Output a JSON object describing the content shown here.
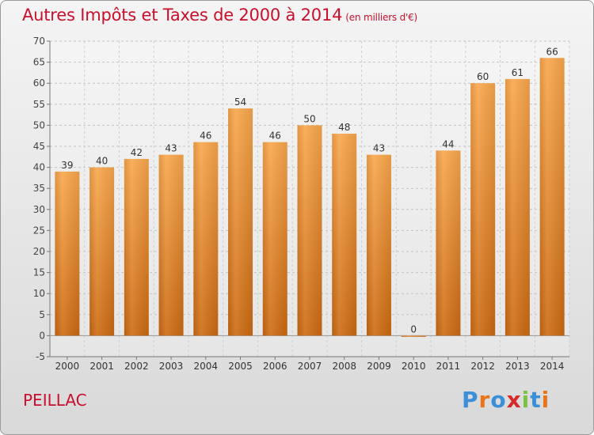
{
  "header": {
    "title": "Autres Impôts et Taxes de 2000 à 2014",
    "unit": "(en milliers d'€)"
  },
  "footer": {
    "commune": "PEILLAC",
    "brand": "Proxiti"
  },
  "colors": {
    "title": "#c8102e",
    "bar_light": "#f9a74c",
    "bar_dark": "#cc6a12"
  },
  "chart_data": {
    "type": "bar",
    "categories": [
      "2000",
      "2001",
      "2002",
      "2003",
      "2004",
      "2005",
      "2006",
      "2007",
      "2008",
      "2009",
      "2010",
      "2011",
      "2012",
      "2013",
      "2014"
    ],
    "values": [
      39,
      40,
      42,
      43,
      46,
      54,
      46,
      50,
      48,
      43,
      0,
      44,
      60,
      61,
      66
    ],
    "ylim": [
      -5,
      70
    ],
    "yticks": [
      -5,
      0,
      5,
      10,
      15,
      20,
      25,
      30,
      35,
      40,
      45,
      50,
      55,
      60,
      65,
      70
    ],
    "grid": true,
    "data_labels": true
  }
}
